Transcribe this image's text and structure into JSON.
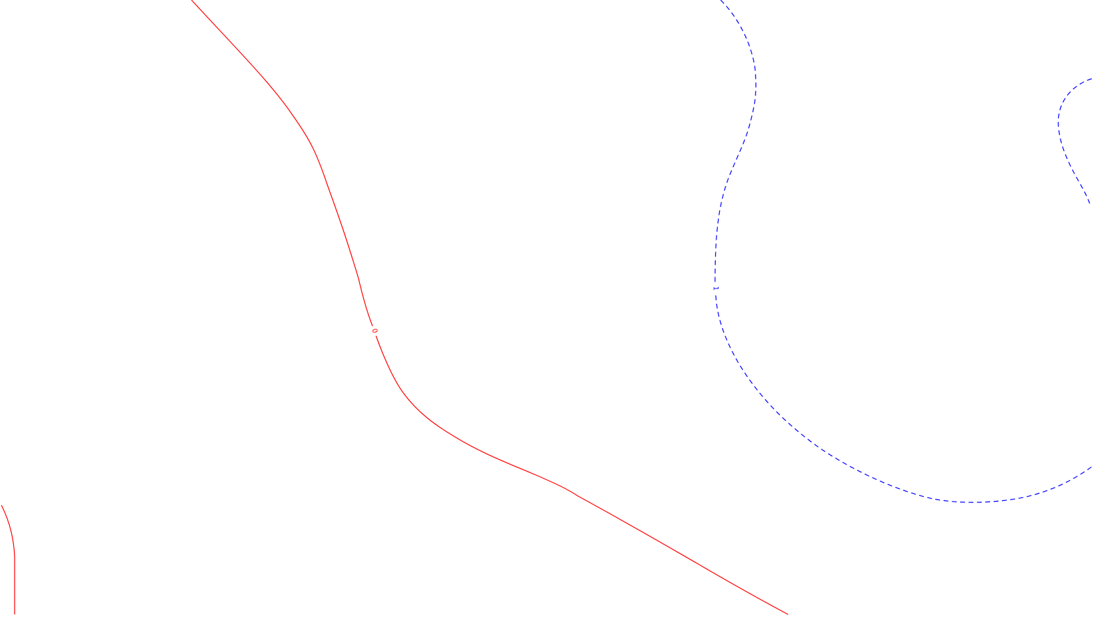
{
  "chart_data": {
    "type": "contour",
    "title": "",
    "xlabel": "",
    "ylabel": "",
    "grid": false,
    "legend": "none",
    "levels": [
      {
        "level": "0",
        "label": "0",
        "color": "#ff0000",
        "linestyle": "solid"
      },
      {
        "level": "1",
        "label": "1",
        "color": "#0000ff",
        "linestyle": "dashed"
      }
    ]
  }
}
